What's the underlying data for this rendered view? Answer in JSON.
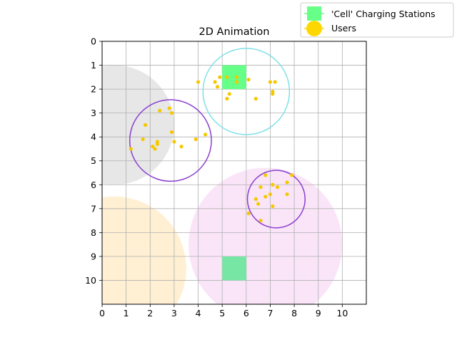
{
  "chart_data": {
    "type": "scatter",
    "title": "2D Animation",
    "xlabel": "",
    "ylabel": "",
    "xlim": [
      0,
      11
    ],
    "ylim": [
      11,
      0
    ],
    "y_inverted": true,
    "grid": true,
    "x_ticks": [
      0,
      1,
      2,
      3,
      4,
      5,
      6,
      7,
      8,
      9,
      10
    ],
    "y_ticks": [
      0,
      1,
      2,
      3,
      4,
      5,
      6,
      7,
      8,
      9,
      10
    ],
    "legend": {
      "placement": "top-right-outside",
      "entries": [
        {
          "label": "'Cell' Charging Stations",
          "color": "#66ff88",
          "marker": "square"
        },
        {
          "label": "Users",
          "color": "#ffd700",
          "marker": "circle"
        }
      ]
    },
    "coverage_areas": [
      {
        "cx": 0.5,
        "cy": 3.5,
        "r": 2.5,
        "fill": "#d3d3d3",
        "opacity": 0.55
      },
      {
        "cx": 0.5,
        "cy": 9.5,
        "r": 3.0,
        "fill": "#ffe4b5",
        "opacity": 0.6
      },
      {
        "cx": 6.8,
        "cy": 8.5,
        "r": 3.2,
        "fill": "#f5c6f0",
        "opacity": 0.45
      }
    ],
    "ring_areas": [
      {
        "cx": 6.0,
        "cy": 2.1,
        "r": 1.8,
        "stroke": "#7fe0e8"
      },
      {
        "cx": 2.85,
        "cy": 4.15,
        "r": 1.7,
        "stroke": "#8a3fd0"
      },
      {
        "cx": 7.25,
        "cy": 6.6,
        "r": 1.2,
        "stroke": "#8a3fd0"
      }
    ],
    "charging_stations": [
      {
        "x": 5.0,
        "y": 1.0,
        "w": 1.0,
        "h": 1.0,
        "color": "#66ff88"
      },
      {
        "x": 5.0,
        "y": 9.0,
        "w": 1.0,
        "h": 1.0,
        "color": "#77e6a5"
      }
    ],
    "users": {
      "color": "#f5c800",
      "points": [
        [
          4.0,
          1.7
        ],
        [
          4.7,
          1.7
        ],
        [
          4.8,
          1.9
        ],
        [
          4.9,
          1.5
        ],
        [
          5.2,
          1.5
        ],
        [
          5.6,
          1.5
        ],
        [
          5.6,
          1.7
        ],
        [
          6.1,
          1.6
        ],
        [
          5.3,
          2.2
        ],
        [
          5.2,
          2.4
        ],
        [
          6.4,
          2.4
        ],
        [
          7.0,
          1.7
        ],
        [
          7.2,
          1.7
        ],
        [
          7.1,
          2.1
        ],
        [
          7.1,
          2.2
        ],
        [
          2.8,
          2.8
        ],
        [
          2.4,
          2.9
        ],
        [
          2.9,
          3.0
        ],
        [
          1.8,
          3.5
        ],
        [
          2.9,
          3.8
        ],
        [
          4.3,
          3.9
        ],
        [
          1.7,
          4.1
        ],
        [
          3.9,
          4.1
        ],
        [
          2.3,
          4.2
        ],
        [
          3.0,
          4.2
        ],
        [
          2.3,
          4.3
        ],
        [
          2.1,
          4.4
        ],
        [
          3.3,
          4.4
        ],
        [
          2.2,
          4.5
        ],
        [
          1.2,
          4.5
        ],
        [
          6.8,
          5.6
        ],
        [
          7.9,
          5.6
        ],
        [
          7.7,
          5.9
        ],
        [
          7.1,
          6.0
        ],
        [
          6.6,
          6.1
        ],
        [
          7.3,
          6.1
        ],
        [
          7.0,
          6.4
        ],
        [
          7.7,
          6.4
        ],
        [
          6.8,
          6.5
        ],
        [
          6.4,
          6.6
        ],
        [
          6.5,
          6.8
        ],
        [
          7.1,
          6.9
        ],
        [
          6.1,
          7.2
        ],
        [
          6.6,
          7.5
        ]
      ]
    }
  }
}
